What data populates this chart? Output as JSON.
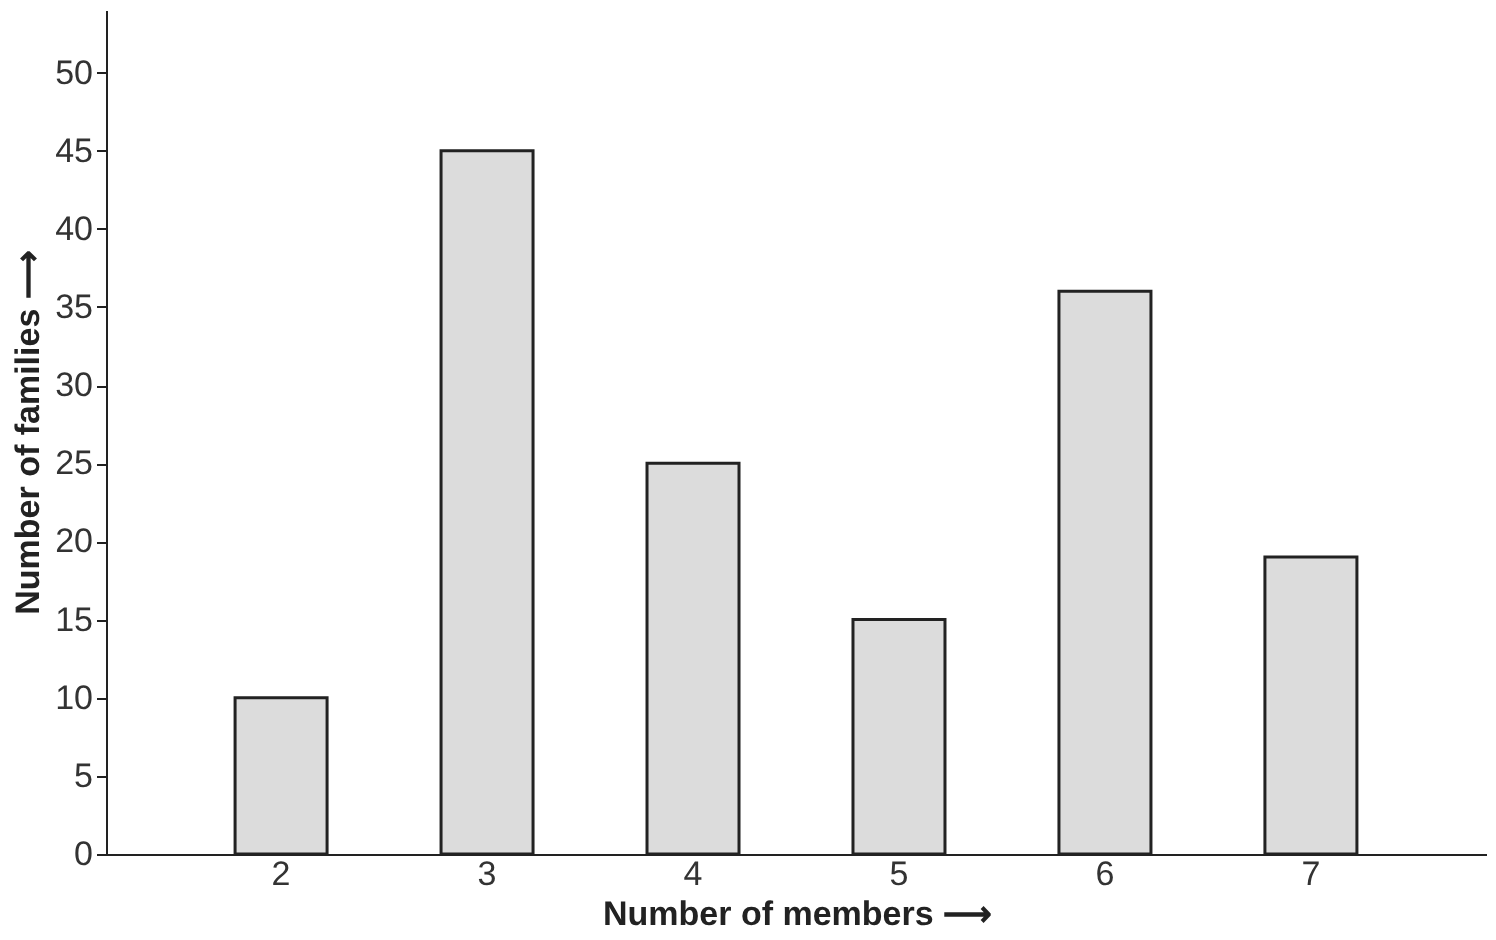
{
  "chart_data": {
    "type": "bar",
    "xlabel": "Number of members ⟶",
    "ylabel": "Number of families ⟶",
    "categories": [
      "2",
      "3",
      "4",
      "5",
      "6",
      "7"
    ],
    "values": [
      10,
      45,
      25,
      15,
      36,
      19
    ],
    "color": "#dcdcdc",
    "ylim": [
      0,
      54
    ],
    "yticks": [
      0,
      5,
      10,
      15,
      20,
      25,
      30,
      35,
      40,
      45,
      50
    ],
    "grid": false
  }
}
